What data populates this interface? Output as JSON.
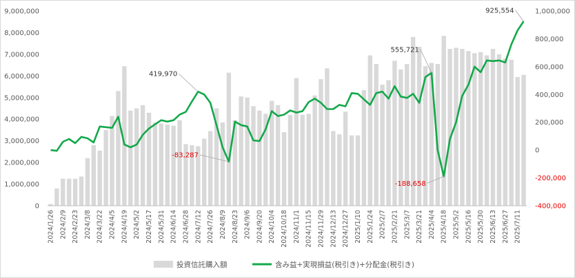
{
  "chart_data": {
    "type": "bar+line",
    "colors": {
      "bars": "#d9d9d9",
      "line": "#13a84a",
      "negative_text": "#e60000",
      "axis_text": "#595959"
    },
    "left_axis": {
      "ylim": [
        0,
        9000000
      ],
      "ticks": [
        0,
        1000000,
        2000000,
        3000000,
        4000000,
        5000000,
        6000000,
        7000000,
        8000000,
        9000000
      ],
      "tick_labels": [
        "0",
        "1,000,000",
        "2,000,000",
        "3,000,000",
        "4,000,000",
        "5,000,000",
        "6,000,000",
        "7,000,000",
        "8,000,000",
        "9,000,000"
      ]
    },
    "right_axis": {
      "ylim": [
        -400000,
        1000000
      ],
      "ticks": [
        -400000,
        -200000,
        0,
        200000,
        400000,
        600000,
        800000,
        1000000
      ],
      "tick_labels": [
        "-400,000",
        "-200,000",
        "0",
        "200,000",
        "400,000",
        "600,000",
        "800,000",
        "1,000,000"
      ]
    },
    "x_tick_labels": [
      "2024/1/26",
      "2024/2/9",
      "2024/2/23",
      "2024/3/8",
      "2024/3/22",
      "2024/4/5",
      "2024/4/19",
      "2024/5/2",
      "2024/5/17",
      "2024/5/31",
      "2024/6/14",
      "2024/6/28",
      "2024/7/12",
      "2024/7/26",
      "2024/8/9",
      "2024/8/23",
      "2024/9/6",
      "2024/9/20",
      "2024/10/4",
      "2024/10/18",
      "2024/11/1",
      "2024/11/15",
      "2024/11/29",
      "2024/12/13",
      "2024/12/27",
      "2025/1/10",
      "2025/1/24",
      "2025/2/7",
      "2025/2/21",
      "2025/3/7",
      "2025/3/21",
      "2025/4/4",
      "2025/4/18",
      "2025/5/2",
      "2025/5/16",
      "2025/5/30",
      "2025/6/13",
      "2025/6/27",
      "2025/7/11"
    ],
    "series": [
      {
        "name": "投資信託購入額",
        "axis": "left",
        "kind": "bar",
        "values": [
          80000,
          800000,
          1250000,
          1250000,
          1250000,
          1350000,
          2200000,
          2800000,
          2550000,
          3500000,
          4150000,
          5300000,
          6450000,
          4400000,
          4500000,
          4650000,
          4300000,
          3850000,
          3800000,
          3750000,
          3700000,
          3950000,
          2850000,
          2800000,
          2750000,
          3100000,
          3450000,
          4500000,
          3850000,
          6150000,
          3950000,
          5050000,
          5000000,
          4600000,
          4400000,
          4250000,
          4850000,
          4650000,
          3400000,
          4200000,
          5900000,
          4200000,
          4250000,
          5100000,
          5850000,
          6350000,
          3450000,
          3300000,
          4350000,
          3250000,
          3250000,
          5350000,
          6950000,
          6550000,
          5600000,
          5800000,
          6700000,
          6300000,
          6550000,
          7800000,
          7350000,
          6450000,
          6600000,
          6550000,
          7850000,
          7250000,
          7300000,
          7250000,
          7150000,
          7050000,
          7100000,
          6950000,
          7250000,
          7000000,
          6800000,
          6750000,
          5950000,
          6050000
        ]
      },
      {
        "name": "含み益+実現損益(税引き)+分配金(税引き)",
        "axis": "right",
        "kind": "line",
        "values": [
          0,
          -5000,
          60000,
          80000,
          50000,
          95000,
          85000,
          55000,
          170000,
          165000,
          160000,
          240000,
          40000,
          20000,
          40000,
          110000,
          155000,
          185000,
          215000,
          205000,
          215000,
          255000,
          275000,
          350000,
          419970,
          400000,
          340000,
          180000,
          20000,
          -83287,
          205000,
          180000,
          170000,
          70000,
          65000,
          150000,
          280000,
          245000,
          255000,
          285000,
          270000,
          280000,
          345000,
          370000,
          340000,
          295000,
          295000,
          325000,
          315000,
          410000,
          405000,
          365000,
          325000,
          410000,
          420000,
          370000,
          460000,
          385000,
          375000,
          405000,
          340000,
          525000,
          555721,
          0,
          -188658,
          80000,
          200000,
          390000,
          470000,
          600000,
          560000,
          645000,
          640000,
          645000,
          630000,
          760000,
          860000,
          925554
        ]
      }
    ],
    "annotations": [
      {
        "text": "419,970",
        "index": 24,
        "value": 419970
      },
      {
        "text": "-83,287",
        "index": 29,
        "value": -83287
      },
      {
        "text": "555,721",
        "index": 62,
        "value": 555721
      },
      {
        "text": "-188,658",
        "index": 64,
        "value": -188658
      },
      {
        "text": "925,554",
        "index": 77,
        "value": 925554
      }
    ],
    "legend_position": "bottom-center"
  }
}
